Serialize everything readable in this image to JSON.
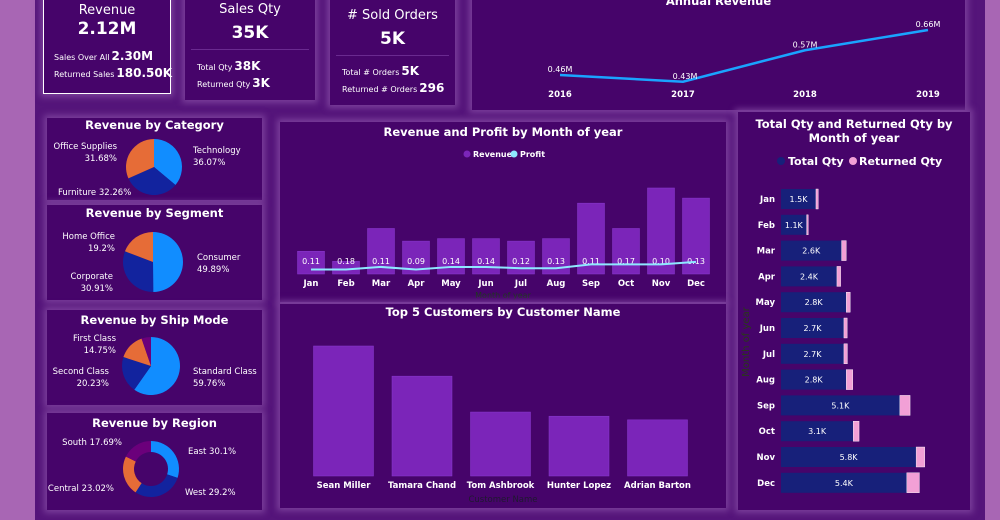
{
  "kpis": {
    "revenue": {
      "title": "Revenue",
      "value": "2.12M",
      "row1_label": "Sales Over All",
      "row1_value": "2.30M",
      "row2_label": "Returned Sales",
      "row2_value": "180.50K"
    },
    "sales_qty": {
      "title": "Sales Qty",
      "value": "35K",
      "row1_label": "Total Qty",
      "row1_value": "38K",
      "row2_label": "Returned Qty",
      "row2_value": "3K"
    },
    "sold_orders": {
      "title": "# Sold Orders",
      "value": "5K",
      "row1_label": "Total # Orders",
      "row1_value": "5K",
      "row2_label": "Returned # Orders",
      "row2_value": "296"
    }
  },
  "colors": {
    "light_blue": "#118dff",
    "dark_blue": "#12239e",
    "orange": "#e66c37",
    "purple": "#6b007b",
    "revenue_bar": "#7b25b9",
    "profit_line": "#8ee8ff",
    "total_qty": "#17207a",
    "returned_qty": "#f2a0d6",
    "annual_line": "#1aa3ff"
  },
  "chart_data": [
    {
      "id": "annual",
      "type": "line",
      "title": "Annual Revenue",
      "x": [
        "2016",
        "2017",
        "2018",
        "2019"
      ],
      "values": [
        0.46,
        0.43,
        0.57,
        0.66
      ],
      "labels": [
        "0.46M",
        "0.43M",
        "0.57M",
        "0.66M"
      ],
      "unit": "M"
    },
    {
      "id": "category",
      "type": "pie",
      "title": "Revenue by Category",
      "slices": [
        {
          "name": "Technology",
          "pct": "36.07%",
          "value": 36.07,
          "color": "#118dff"
        },
        {
          "name": "Furniture",
          "pct": "32.26%",
          "value": 32.26,
          "color": "#12239e"
        },
        {
          "name": "Office Supplies",
          "pct": "31.68%",
          "value": 31.68,
          "color": "#e66c37"
        }
      ]
    },
    {
      "id": "segment",
      "type": "pie",
      "title": "Revenue by Segment",
      "slices": [
        {
          "name": "Consumer",
          "pct": "49.89%",
          "value": 49.89,
          "color": "#118dff"
        },
        {
          "name": "Corporate",
          "pct": "30.91%",
          "value": 30.91,
          "color": "#12239e"
        },
        {
          "name": "Home Office",
          "pct": "19.2%",
          "value": 19.2,
          "color": "#e66c37"
        }
      ]
    },
    {
      "id": "shipmode",
      "type": "pie",
      "title": "Revenue by Ship Mode",
      "slices": [
        {
          "name": "Standard Class",
          "pct": "59.76%",
          "value": 59.76,
          "color": "#118dff"
        },
        {
          "name": "Second Class",
          "pct": "20.23%",
          "value": 20.23,
          "color": "#12239e"
        },
        {
          "name": "First Class",
          "pct": "14.75%",
          "value": 14.75,
          "color": "#e66c37"
        },
        {
          "value": 5.26,
          "color": "#6b007b"
        }
      ]
    },
    {
      "id": "region",
      "type": "pie",
      "donut": true,
      "title": "Revenue by Region",
      "slices": [
        {
          "name": "East",
          "pct": "30.1%",
          "value": 30.1,
          "color": "#118dff"
        },
        {
          "name": "West",
          "pct": "29.2%",
          "value": 29.2,
          "color": "#12239e"
        },
        {
          "name": "Central",
          "pct": "23.02%",
          "value": 23.02,
          "color": "#e66c37"
        },
        {
          "name": "South",
          "pct": "17.69%",
          "value": 17.69,
          "color": "#6b007b"
        }
      ]
    },
    {
      "id": "month",
      "type": "bar",
      "title": "Revenue and Profit by Month of year",
      "legend": [
        "Revenue",
        "Profit"
      ],
      "xlabel": "Month of year",
      "categories": [
        "Jan",
        "Feb",
        "Mar",
        "Apr",
        "May",
        "Jun",
        "Jul",
        "Aug",
        "Sep",
        "Oct",
        "Nov",
        "Dec"
      ],
      "series": [
        {
          "name": "Revenue",
          "unit": "M",
          "values": [
            0.09,
            0.05,
            0.18,
            0.13,
            0.14,
            0.14,
            0.13,
            0.14,
            0.28,
            0.18,
            0.34,
            0.3
          ]
        },
        {
          "name": "Profit",
          "unit": "M",
          "values": [
            0.01,
            0.01,
            0.02,
            0.01,
            0.02,
            0.02,
            0.015,
            0.015,
            0.03,
            0.03,
            0.03,
            0.04
          ]
        }
      ],
      "bar_labels": [
        "0.11",
        "0.18",
        "0.11",
        "0.09",
        "0.14",
        "0.14",
        "0.12",
        "0.13",
        "0.11",
        "0.17",
        "0.10",
        "0.13"
      ]
    },
    {
      "id": "customers",
      "type": "bar",
      "title": "Top 5 Customers by Customer Name",
      "xlabel": "Customer Name",
      "categories": [
        "Sean Miller",
        "Tamara Chand",
        "Tom Ashbrook",
        "Hunter Lopez",
        "Adrian Barton"
      ],
      "values": [
        25.0,
        19.2,
        12.3,
        11.5,
        10.8
      ],
      "unit": "K"
    },
    {
      "id": "qty",
      "type": "bar",
      "orientation": "horizontal",
      "title": "Total Qty and Returned Qty by Month of year",
      "legend": [
        "Total Qty",
        "Returned Qty"
      ],
      "ylabel": "Month of year",
      "categories": [
        "Jan",
        "Feb",
        "Mar",
        "Apr",
        "May",
        "Jun",
        "Jul",
        "Aug",
        "Sep",
        "Oct",
        "Nov",
        "Dec"
      ],
      "series": [
        {
          "name": "Total Qty",
          "unit": "K",
          "values": [
            1.5,
            1.1,
            2.6,
            2.4,
            2.8,
            2.7,
            2.7,
            2.8,
            5.1,
            3.1,
            5.8,
            5.4
          ],
          "labels": [
            "1.5K",
            "1.1K",
            "2.6K",
            "2.4K",
            "2.8K",
            "2.7K",
            "2.7K",
            "2.8K",
            "5.1K",
            "3.1K",
            "5.8K",
            "5.4K"
          ]
        },
        {
          "name": "Returned Qty",
          "unit": "K",
          "values": [
            0.1,
            0.07,
            0.2,
            0.16,
            0.17,
            0.14,
            0.15,
            0.28,
            0.44,
            0.25,
            0.37,
            0.54
          ]
        }
      ]
    }
  ]
}
